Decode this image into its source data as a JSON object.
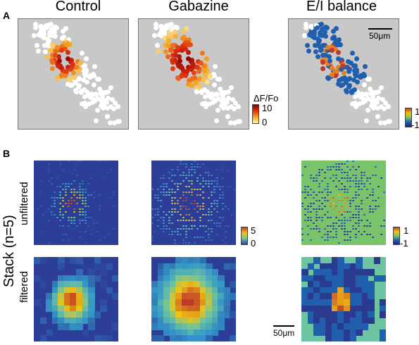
{
  "panel_a": {
    "letter": "A",
    "titles": [
      "Control",
      "Gabazine",
      "E/I balance"
    ],
    "colorbar": {
      "label": "ΔF/Fo",
      "max": "10",
      "min": "0"
    },
    "ei_colorbar": {
      "max": "1",
      "min": "-1"
    },
    "scale_bar": "50μm"
  },
  "panel_b": {
    "letter": "B",
    "stack_label": "Stack (n=5)",
    "row_labels": [
      "unfiltered",
      "filtered"
    ],
    "colorbar": {
      "max": "5",
      "min": "0"
    },
    "ei_colorbar": {
      "max": "1",
      "min": "-1"
    },
    "scale_bar": "50μm"
  },
  "colors": {
    "grey_bg": "#c8c8c8",
    "heat_bg": "#2c3e97",
    "ei_bg": "#7ac36a",
    "white_cell": "#ffffff",
    "hot_high": "#8b0000",
    "hot_low": "#fff8b0",
    "ei_pos": "#c0392b",
    "ei_neg": "#1f5fae"
  }
}
